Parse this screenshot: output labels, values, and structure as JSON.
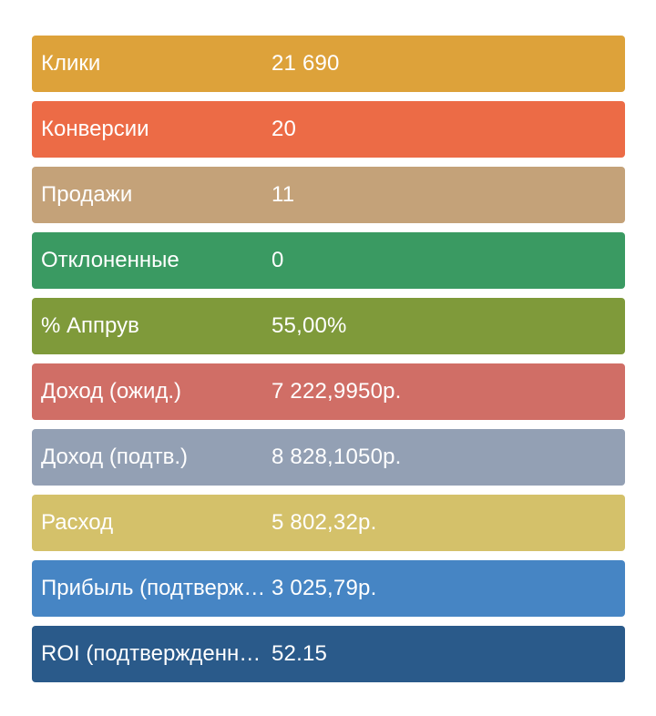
{
  "stats": [
    {
      "label": "Клики",
      "value": "21 690",
      "color": "#dda23a"
    },
    {
      "label": "Конверсии",
      "value": "20",
      "color": "#ec6b46"
    },
    {
      "label": "Продажи",
      "value": "11",
      "color": "#c4a279"
    },
    {
      "label": "Отклоненные",
      "value": "0",
      "color": "#3a9a62"
    },
    {
      "label": "% Аппрув",
      "value": "55,00%",
      "color": "#7f9a3a"
    },
    {
      "label": "Доход (ожид.)",
      "value": "7 222,9950р.",
      "color": "#d06e66"
    },
    {
      "label": "Доход (подтв.)",
      "value": "8 828,1050р.",
      "color": "#93a0b4"
    },
    {
      "label": "Расход",
      "value": "5 802,32р.",
      "color": "#d4c16a"
    },
    {
      "label": "Прибыль (подтвержденная)",
      "value": "3 025,79р.",
      "color": "#4685c4"
    },
    {
      "label": "ROI (подтвержденный)",
      "value": "52.15",
      "color": "#2a5a8a"
    }
  ]
}
